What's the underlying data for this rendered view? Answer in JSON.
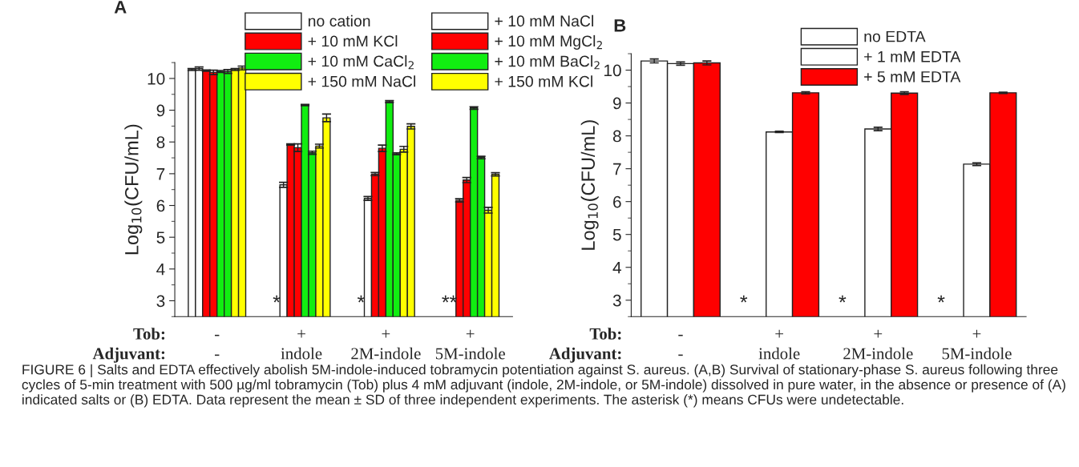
{
  "chart_data": [
    {
      "type": "bar",
      "title": "A",
      "ylabel": "Log$_{10}$(CFU/mL)",
      "categories": [
        "-\n-",
        "+\nindole",
        "+\n2M-indole",
        "+\n5M-indole"
      ],
      "series": [
        {
          "name": "no cation",
          "color": "#ffffff",
          "values": [
            10.28,
            null,
            null,
            null
          ],
          "errors": [
            0.03,
            null,
            null,
            null
          ]
        },
        {
          "name": "+ 10 mM NaCl",
          "color": "#ffffff",
          "values": [
            10.31,
            6.65,
            6.22,
            null
          ],
          "errors": [
            0.05,
            0.08,
            0.06,
            null
          ]
        },
        {
          "name": "+ 10 mM KCl",
          "color": "#ff0000",
          "values": [
            10.25,
            7.92,
            6.99,
            6.16
          ],
          "errors": [
            0.02,
            0.02,
            0.05,
            0.05
          ]
        },
        {
          "name": "+ 10 mM MgCl$_{2}$",
          "color": "#ff0000",
          "values": [
            10.19,
            7.82,
            7.8,
            6.8
          ],
          "errors": [
            0.07,
            0.12,
            0.1,
            0.08
          ]
        },
        {
          "name": "+ 10 mM CaCl$_{2}$",
          "color": "#11ee11",
          "values": [
            10.22,
            9.16,
            9.27,
            9.07
          ],
          "errors": [
            0.03,
            0.02,
            0.03,
            0.04
          ]
        },
        {
          "name": "+ 10 mM BaCl$_{2}$",
          "color": "#11ee11",
          "values": [
            10.22,
            7.66,
            7.63,
            7.51
          ],
          "errors": [
            0.06,
            0.05,
            0.03,
            0.04
          ]
        },
        {
          "name": "+ 150 mM NaCl",
          "color": "#ffff00",
          "values": [
            10.28,
            7.87,
            7.77,
            5.85
          ],
          "errors": [
            0.03,
            0.06,
            0.09,
            0.09
          ]
        },
        {
          "name": "+ 150 mM KCl",
          "color": "#ffff00",
          "values": [
            10.33,
            8.76,
            8.49,
            6.98
          ],
          "errors": [
            0.06,
            0.12,
            0.08,
            0.05
          ]
        }
      ],
      "ylim": [
        2.5,
        10.5
      ],
      "yticks": [
        3,
        4,
        5,
        6,
        7,
        8,
        9,
        10
      ],
      "legend": "top",
      "annotations": [
        "Tob:",
        "Adjuvant:",
        "*",
        "*",
        "**"
      ]
    },
    {
      "type": "bar",
      "title": "B",
      "ylabel": "Log$_{10}$(CFU/mL)",
      "categories": [
        "-\n-",
        "+\nindole",
        "+\n2M-indole",
        "+\n5M-indole"
      ],
      "series": [
        {
          "name": "no EDTA",
          "color": "#ffffff",
          "values": [
            10.28,
            null,
            null,
            null
          ],
          "errors": [
            0.06,
            null,
            null,
            null
          ]
        },
        {
          "name": "+ 1 mM EDTA",
          "color": "#ffffff",
          "values": [
            10.2,
            8.12,
            8.21,
            7.14
          ],
          "errors": [
            0.05,
            0.02,
            0.05,
            0.04
          ]
        },
        {
          "name": "+ 5 mM EDTA",
          "color": "#ff0000",
          "values": [
            10.22,
            9.31,
            9.3,
            9.31
          ],
          "errors": [
            0.06,
            0.03,
            0.04,
            0.02
          ]
        }
      ],
      "ylim": [
        2.5,
        10.5
      ],
      "yticks": [
        3,
        4,
        5,
        6,
        7,
        8,
        9,
        10
      ],
      "legend": "top right",
      "annotations": [
        "Tob:",
        "Adjuvant:",
        "*",
        "*",
        "*",
        "FIGURE 6 | Salts and EDTA effectively abolish 5M-indole-induced tobramycin potentiation against S. aureus. (A,B) Survival of stationary-phase S. aureus following three cycles of 5-min treatment with 500 µg/ml tobramycin (Tob) plus 4 mM adjuvant (indole, 2M-indole, or 5M-indole) dissolved in pure water, in the absence or presence of (A) indicated salts or (B) EDTA. Data represent the mean ± SD of three independent experiments. The asterisk (*) means CFUs were undetectable."
      ]
    }
  ]
}
